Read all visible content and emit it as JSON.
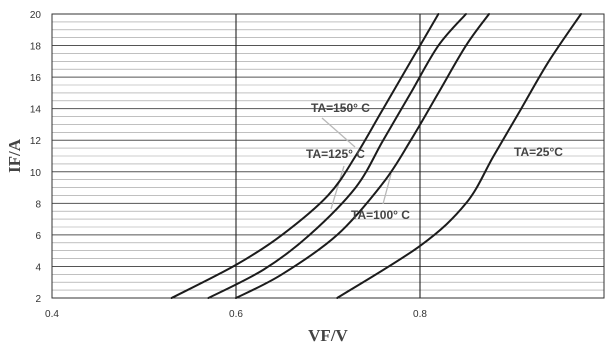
{
  "chart_data": {
    "type": "line",
    "xlabel": "VF/V",
    "ylabel": "IF/A",
    "xlim": [
      0.4,
      1.0
    ],
    "ylim": [
      2,
      20
    ],
    "x_ticks": [
      0.4,
      0.6,
      0.8
    ],
    "x_tick_labels": [
      "0.4",
      "0.6",
      "0.8"
    ],
    "y_ticks": [
      2,
      4,
      6,
      8,
      10,
      12,
      14,
      16,
      18,
      20
    ],
    "y_tick_labels": [
      "2",
      "4",
      "6",
      "8",
      "10",
      "12",
      "14",
      "16",
      "18",
      "20"
    ],
    "grid": {
      "horizontal_step": 0.5,
      "vertical_at": [
        0.6,
        0.8
      ]
    },
    "series": [
      {
        "name": "TA=150° C",
        "points": [
          [
            0.53,
            2
          ],
          [
            0.6,
            4.1
          ],
          [
            0.65,
            6
          ],
          [
            0.7,
            8.5
          ],
          [
            0.73,
            11
          ],
          [
            0.76,
            14
          ],
          [
            0.79,
            17
          ],
          [
            0.82,
            20
          ]
        ]
      },
      {
        "name": "TA=125° C",
        "points": [
          [
            0.57,
            2
          ],
          [
            0.63,
            3.8
          ],
          [
            0.68,
            6
          ],
          [
            0.73,
            9
          ],
          [
            0.76,
            12
          ],
          [
            0.79,
            15
          ],
          [
            0.82,
            18
          ],
          [
            0.85,
            20
          ]
        ]
      },
      {
        "name": "TA=100° C",
        "points": [
          [
            0.6,
            2
          ],
          [
            0.65,
            3.5
          ],
          [
            0.71,
            6
          ],
          [
            0.76,
            9.3
          ],
          [
            0.79,
            12
          ],
          [
            0.82,
            15
          ],
          [
            0.85,
            18
          ],
          [
            0.875,
            20
          ]
        ]
      },
      {
        "name": "TA=25°C",
        "points": [
          [
            0.71,
            2
          ],
          [
            0.8,
            5.3
          ],
          [
            0.85,
            8
          ],
          [
            0.88,
            11
          ],
          [
            0.91,
            14
          ],
          [
            0.94,
            17
          ],
          [
            0.975,
            20
          ]
        ]
      }
    ],
    "annotations": [
      {
        "text": "TA=150° C"
      },
      {
        "text": "TA=125° C"
      },
      {
        "text": "TA=100° C"
      },
      {
        "text": "TA=25°C"
      }
    ]
  }
}
